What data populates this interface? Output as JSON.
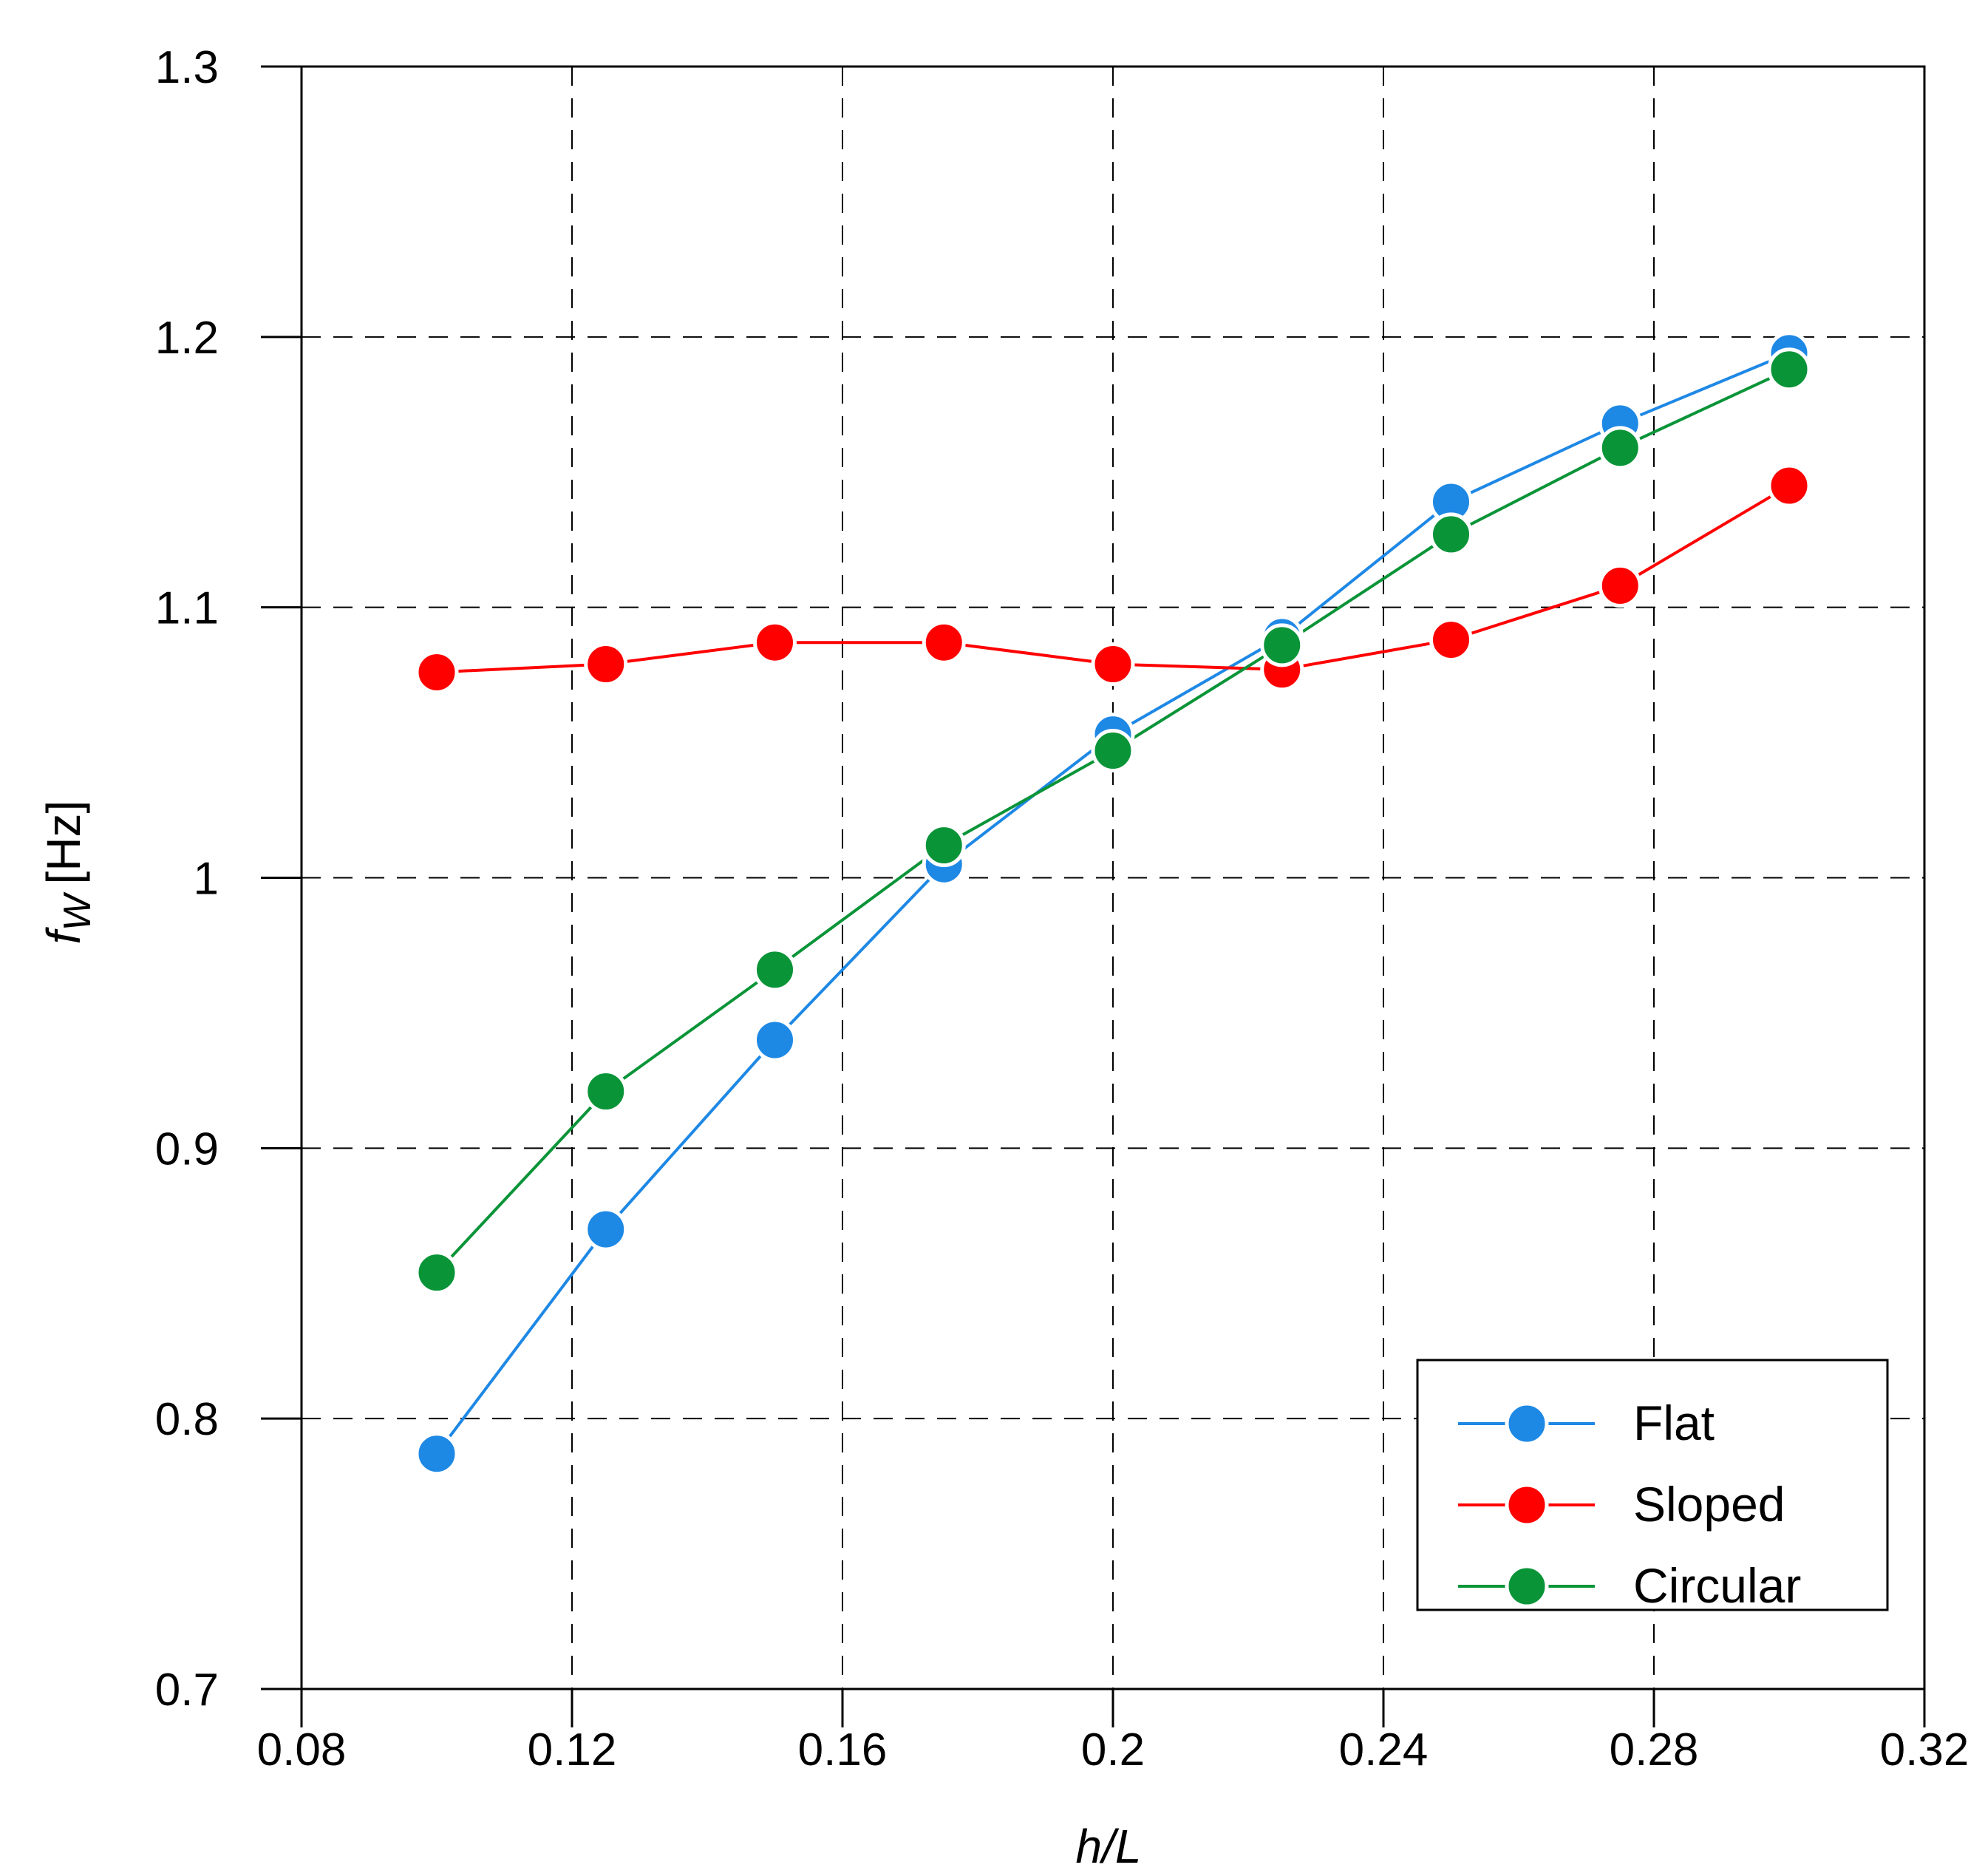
{
  "chart_data": {
    "type": "line",
    "title": "",
    "xlabel": "h/L",
    "ylabel": {
      "symbol": "f",
      "subscript": "W",
      "unit": "[Hz]"
    },
    "xlim": [
      0.08,
      0.32
    ],
    "ylim": [
      0.7,
      1.3
    ],
    "xticks": [
      "0.08",
      "0.12",
      "0.16",
      "0.2",
      "0.24",
      "0.28",
      "0.32"
    ],
    "yticks": [
      "0.7",
      "0.8",
      "0.9",
      "1",
      "1.1",
      "1.2",
      "1.3"
    ],
    "x_tick_values": [
      0.08,
      0.12,
      0.16,
      0.2,
      0.24,
      0.28,
      0.32
    ],
    "y_tick_values": [
      0.7,
      0.8,
      0.9,
      1.0,
      1.1,
      1.2,
      1.3
    ],
    "grid": "dashed",
    "legend_position": "bottom-right",
    "x": [
      0.1,
      0.125,
      0.15,
      0.175,
      0.2,
      0.225,
      0.25,
      0.275,
      0.3
    ],
    "series": [
      {
        "name": "Flat",
        "color": "#1e88e5",
        "values": [
          0.787,
          0.87,
          0.94,
          1.005,
          1.053,
          1.089,
          1.139,
          1.168,
          1.194
        ]
      },
      {
        "name": "Sloped",
        "color": "#ff0000",
        "values": [
          1.076,
          1.079,
          1.087,
          1.087,
          1.079,
          1.077,
          1.088,
          1.108,
          1.145
        ]
      },
      {
        "name": "Circular",
        "color": "#0a9438",
        "values": [
          0.854,
          0.921,
          0.966,
          1.012,
          1.047,
          1.086,
          1.127,
          1.159,
          1.188
        ]
      }
    ]
  }
}
